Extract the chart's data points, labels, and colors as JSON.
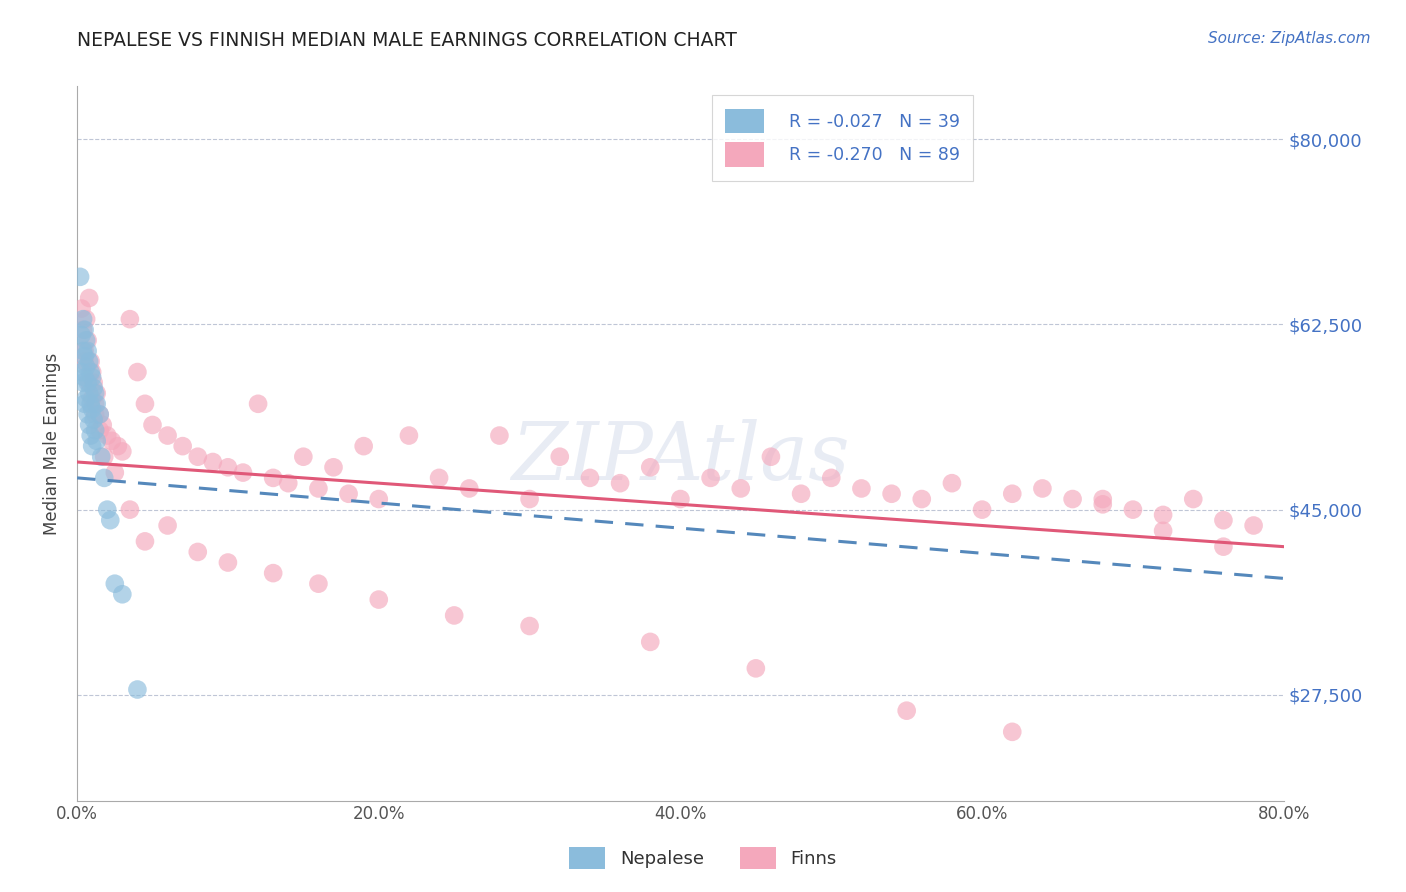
{
  "title": "NEPALESE VS FINNISH MEDIAN MALE EARNINGS CORRELATION CHART",
  "source_text": "Source: ZipAtlas.com",
  "ylabel": "Median Male Earnings",
  "xlim": [
    0.0,
    0.8
  ],
  "ylim": [
    17500,
    85000
  ],
  "yticks": [
    27500,
    45000,
    62500,
    80000
  ],
  "ytick_labels": [
    "$27,500",
    "$45,000",
    "$62,500",
    "$80,000"
  ],
  "xticks": [
    0.0,
    0.2,
    0.4,
    0.6,
    0.8
  ],
  "xtick_labels": [
    "0.0%",
    "20.0%",
    "40.0%",
    "60.0%",
    "80.0%"
  ],
  "watermark": "ZIPAtlas",
  "nepalese_color": "#8bbcdc",
  "finns_color": "#f4a8bc",
  "nepalese_label": "Nepalese",
  "finns_label": "Finns",
  "legend_r_nepalese": "R = -0.027",
  "legend_n_nepalese": "N = 39",
  "legend_r_finns": "R = -0.270",
  "legend_n_finns": "N = 89",
  "trend_nepalese_color": "#5588bb",
  "trend_finns_color": "#e05878",
  "nepalese_x": [
    0.002,
    0.003,
    0.003,
    0.004,
    0.004,
    0.004,
    0.005,
    0.005,
    0.005,
    0.005,
    0.006,
    0.006,
    0.006,
    0.007,
    0.007,
    0.007,
    0.008,
    0.008,
    0.008,
    0.009,
    0.009,
    0.009,
    0.01,
    0.01,
    0.01,
    0.011,
    0.011,
    0.012,
    0.012,
    0.013,
    0.013,
    0.015,
    0.016,
    0.018,
    0.02,
    0.022,
    0.025,
    0.03,
    0.04
  ],
  "nepalese_y": [
    67000,
    61500,
    58000,
    63000,
    60000,
    57000,
    62000,
    59500,
    57500,
    55000,
    61000,
    58500,
    55500,
    60000,
    57000,
    54000,
    59000,
    56000,
    53000,
    58000,
    55000,
    52000,
    57500,
    54500,
    51000,
    56500,
    53500,
    56000,
    52500,
    55000,
    51500,
    54000,
    50000,
    48000,
    45000,
    44000,
    38000,
    37000,
    28000
  ],
  "finns_x": [
    0.003,
    0.004,
    0.005,
    0.006,
    0.007,
    0.008,
    0.009,
    0.01,
    0.011,
    0.012,
    0.013,
    0.015,
    0.017,
    0.02,
    0.023,
    0.027,
    0.03,
    0.035,
    0.04,
    0.045,
    0.05,
    0.06,
    0.07,
    0.08,
    0.09,
    0.1,
    0.11,
    0.12,
    0.13,
    0.14,
    0.15,
    0.16,
    0.17,
    0.18,
    0.19,
    0.2,
    0.22,
    0.24,
    0.26,
    0.28,
    0.3,
    0.32,
    0.34,
    0.36,
    0.38,
    0.4,
    0.42,
    0.44,
    0.46,
    0.48,
    0.5,
    0.52,
    0.54,
    0.56,
    0.58,
    0.6,
    0.62,
    0.64,
    0.66,
    0.68,
    0.7,
    0.72,
    0.74,
    0.76,
    0.78,
    0.005,
    0.008,
    0.01,
    0.012,
    0.015,
    0.018,
    0.025,
    0.035,
    0.045,
    0.06,
    0.08,
    0.1,
    0.13,
    0.16,
    0.2,
    0.25,
    0.3,
    0.38,
    0.45,
    0.55,
    0.62,
    0.68,
    0.72,
    0.76
  ],
  "finns_y": [
    64000,
    62000,
    60000,
    63000,
    61000,
    65000,
    59000,
    58000,
    57000,
    55000,
    56000,
    54000,
    53000,
    52000,
    51500,
    51000,
    50500,
    63000,
    58000,
    55000,
    53000,
    52000,
    51000,
    50000,
    49500,
    49000,
    48500,
    55000,
    48000,
    47500,
    50000,
    47000,
    49000,
    46500,
    51000,
    46000,
    52000,
    48000,
    47000,
    52000,
    46000,
    50000,
    48000,
    47500,
    49000,
    46000,
    48000,
    47000,
    50000,
    46500,
    48000,
    47000,
    46500,
    46000,
    47500,
    45000,
    46500,
    47000,
    46000,
    45500,
    45000,
    44500,
    46000,
    44000,
    43500,
    59000,
    57000,
    55500,
    54000,
    52500,
    50000,
    48500,
    45000,
    42000,
    43500,
    41000,
    40000,
    39000,
    38000,
    36500,
    35000,
    34000,
    32500,
    30000,
    26000,
    24000,
    46000,
    43000,
    41500
  ],
  "trend_finns_x0": 0.0,
  "trend_finns_x1": 0.8,
  "trend_finns_y0": 49500,
  "trend_finns_y1": 41500,
  "trend_nepalese_x0": 0.0,
  "trend_nepalese_x1": 0.8,
  "trend_nepalese_y0": 48000,
  "trend_nepalese_y1": 38500
}
